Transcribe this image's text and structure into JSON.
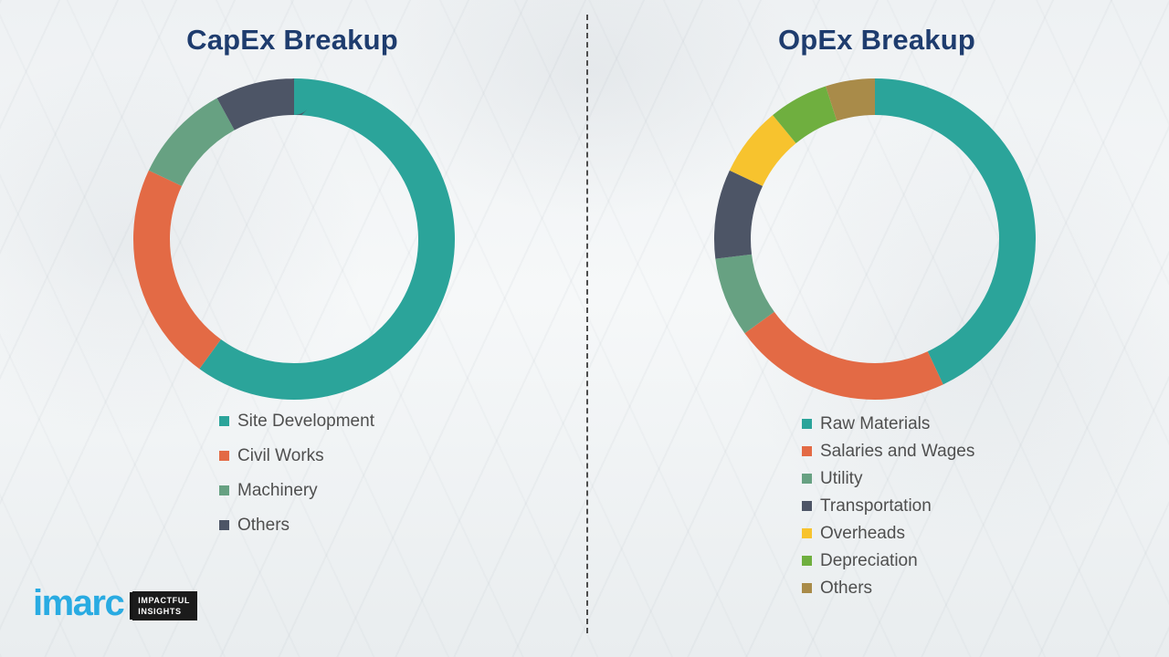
{
  "theme": {
    "title_color": "#1E3C6E",
    "legend_text_color": "#4F4F4F",
    "divider_color": "#4D4D4D",
    "logo_blue": "#29ABE2",
    "background": "#F2F5F6"
  },
  "chart_data": [
    {
      "type": "pie",
      "subtype": "donut",
      "title": "CapEx Breakup",
      "labels": [
        "Site Development",
        "Civil Works",
        "Machinery",
        "Others"
      ],
      "values": [
        60,
        22,
        10,
        8
      ],
      "colors": [
        "#2BA49A",
        "#E36A45",
        "#67A182",
        "#4D5566"
      ],
      "units": "percent",
      "start_angle_deg": 0,
      "direction": "clockwise",
      "legend_position": "bottom-left",
      "grid": false
    },
    {
      "type": "pie",
      "subtype": "donut",
      "title": "OpEx Breakup",
      "labels": [
        "Raw Materials",
        "Salaries and Wages",
        "Utility",
        "Transportation",
        "Overheads",
        "Depreciation",
        "Others"
      ],
      "values": [
        43,
        22,
        8,
        9,
        7,
        6,
        5
      ],
      "colors": [
        "#2BA49A",
        "#E36A45",
        "#67A182",
        "#4D5566",
        "#F7C32E",
        "#6FAF3F",
        "#A98B49"
      ],
      "units": "percent",
      "start_angle_deg": 0,
      "direction": "clockwise",
      "legend_position": "bottom-left",
      "grid": false
    }
  ],
  "logo": {
    "name": "imarc",
    "tagline": [
      "IMPACTFUL",
      "INSIGHTS"
    ]
  }
}
